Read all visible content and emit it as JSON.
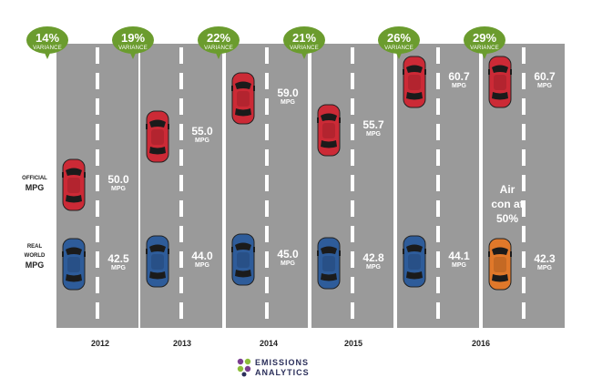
{
  "chart_data": {
    "type": "infographic",
    "row_labels": [
      {
        "small": "OFFICIAL",
        "big": "MPG"
      },
      {
        "small": "REAL WORLD",
        "big": "MPG"
      }
    ],
    "years": [
      "2012",
      "2013",
      "2014",
      "2015",
      "2016"
    ],
    "unit": "MPG",
    "variance_label": "VARIANCE",
    "columns": [
      {
        "year": "2012",
        "variance": "14%",
        "official": 50.0,
        "official_label": "50.0",
        "real": 42.5,
        "real_label": "42.5"
      },
      {
        "year": "2013",
        "variance": "19%",
        "official": 55.0,
        "official_label": "55.0",
        "real": 44.0,
        "real_label": "44.0"
      },
      {
        "year": "2014",
        "variance": "22%",
        "official": 59.0,
        "official_label": "59.0",
        "real": 45.0,
        "real_label": "45.0"
      },
      {
        "year": "2015",
        "variance": "21%",
        "official": 55.7,
        "official_label": "55.7",
        "real": 42.8,
        "real_label": "42.8"
      },
      {
        "year": "2016",
        "variance": "26%",
        "official": 60.7,
        "official_label": "60.7",
        "real": 44.1,
        "real_label": "44.1"
      },
      {
        "year": "2016",
        "variance": "29%",
        "official": 60.7,
        "official_label": "60.7",
        "real": 42.3,
        "real_label": "42.3",
        "note": "Air con at 50%"
      }
    ],
    "colors": {
      "official_car": "#cc2a36",
      "real_car": "#2e5c9a",
      "aircon_car": "#e0782a",
      "badge": "#6b9c2e",
      "road": "#9a9a9a"
    }
  },
  "footer": {
    "logo_line1": "EMISSIONS",
    "logo_line2": "ANALYTICS"
  }
}
